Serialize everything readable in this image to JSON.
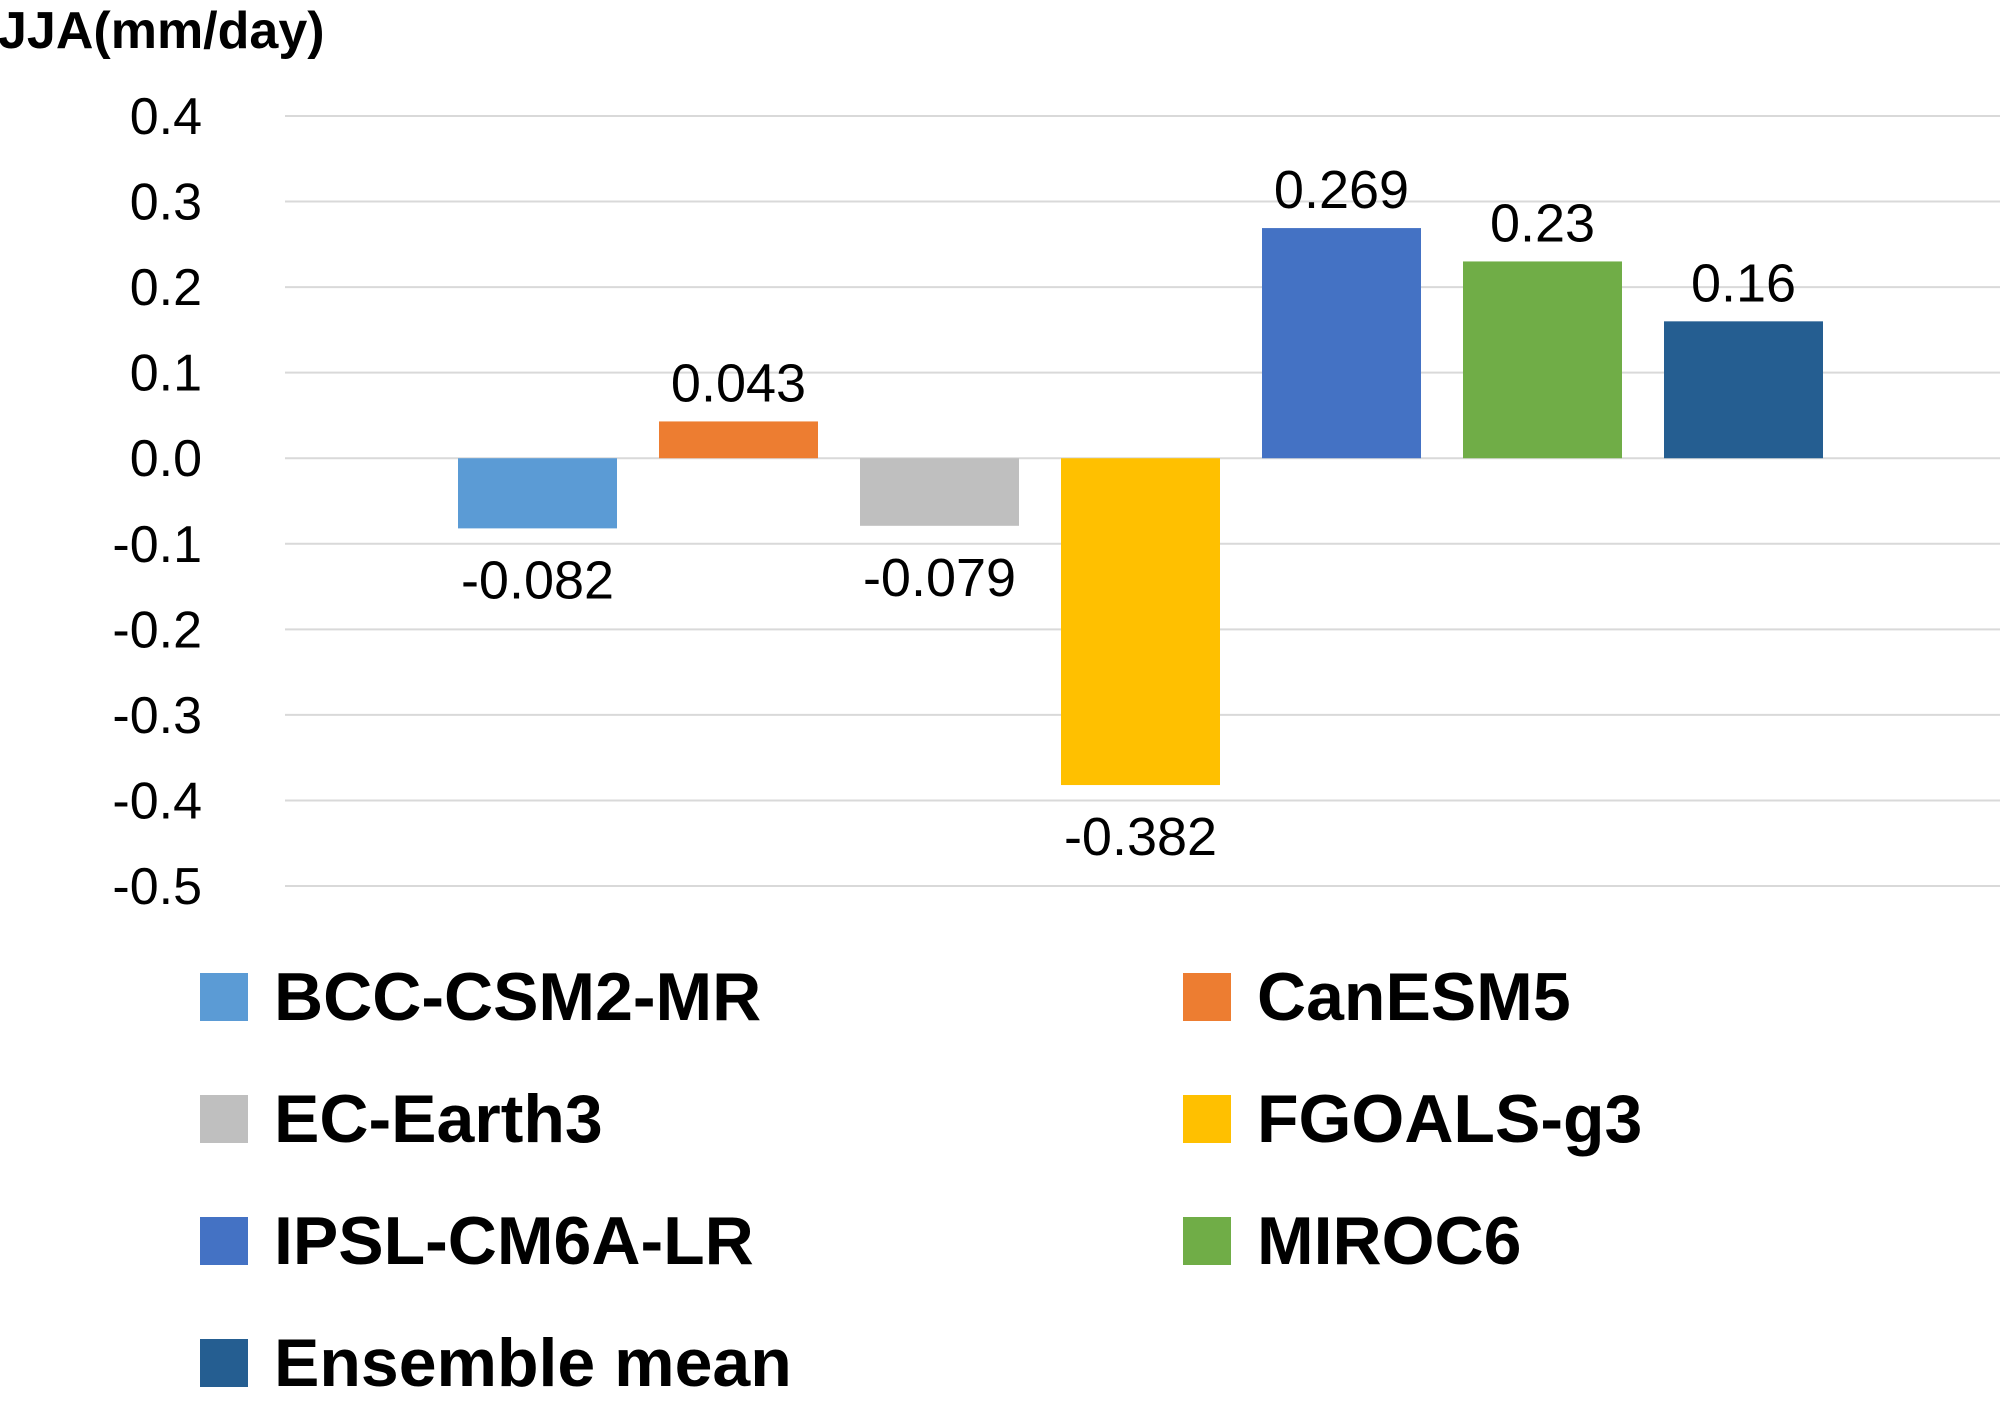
{
  "chart_data": {
    "type": "bar",
    "ylabel": "JJA(mm/day)",
    "ylim": [
      -0.5,
      0.4
    ],
    "yticks": [
      "0.4",
      "0.3",
      "0.2",
      "0.1",
      "0.0",
      "-0.1",
      "-0.2",
      "-0.3",
      "-0.4",
      "-0.5"
    ],
    "ytick_values": [
      0.4,
      0.3,
      0.2,
      0.1,
      0.0,
      -0.1,
      -0.2,
      -0.3,
      -0.4,
      -0.5
    ],
    "grid": true,
    "legend_position": "bottom",
    "series": [
      {
        "name": "BCC-CSM2-MR",
        "value": -0.082,
        "label": "-0.082",
        "color": "#5B9BD5"
      },
      {
        "name": "CanESM5",
        "value": 0.043,
        "label": "0.043",
        "color": "#ED7D31"
      },
      {
        "name": "EC-Earth3",
        "value": -0.079,
        "label": "-0.079",
        "color": "#BFBFBF"
      },
      {
        "name": "FGOALS-g3",
        "value": -0.382,
        "label": "-0.382",
        "color": "#FFC000"
      },
      {
        "name": "IPSL-CM6A-LR",
        "value": 0.269,
        "label": "0.269",
        "color": "#4472C4"
      },
      {
        "name": "MIROC6",
        "value": 0.23,
        "label": "0.23",
        "color": "#70AD47"
      },
      {
        "name": "Ensemble mean",
        "value": 0.16,
        "label": "0.16",
        "color": "#255E91"
      }
    ]
  }
}
